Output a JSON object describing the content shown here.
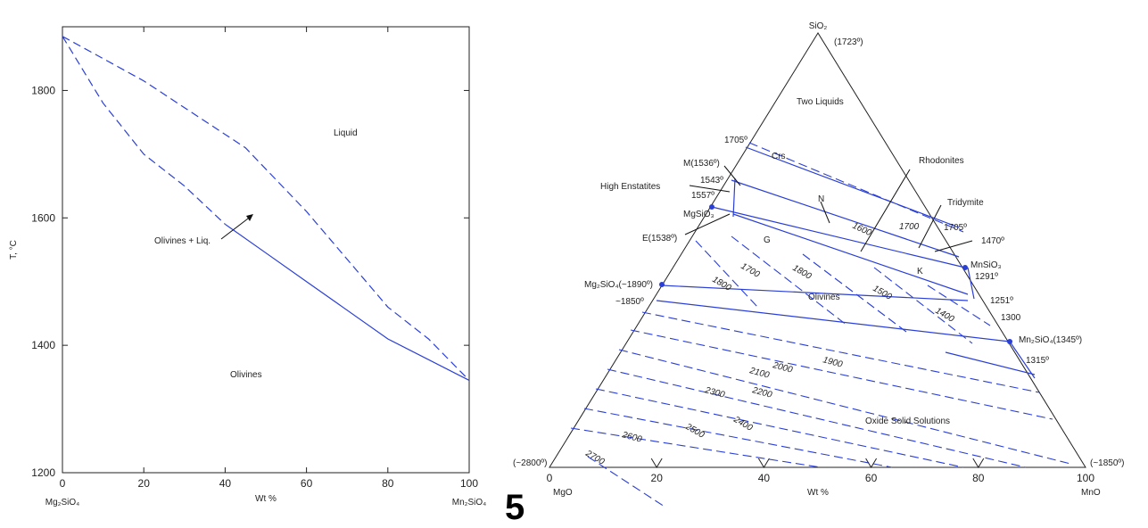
{
  "figure_number": "5",
  "chart_data": [
    {
      "type": "line",
      "xlabel": "Wt %",
      "ylabel": "T, °C",
      "xlim": [
        0,
        100
      ],
      "ylim": [
        1200,
        1900
      ],
      "x_ticks": [
        0,
        20,
        40,
        60,
        80,
        100
      ],
      "y_ticks": [
        1200,
        1400,
        1600,
        1800
      ],
      "x_end_labels": [
        "Mg₂SiO₄",
        "Mn₂SiO₄"
      ],
      "series": [
        {
          "style": "dashed",
          "x": [
            0,
            20,
            45,
            60,
            80,
            90,
            100
          ],
          "y": [
            1885,
            1815,
            1710,
            1610,
            1460,
            1410,
            1345
          ]
        },
        {
          "style": "dashed-then-solid",
          "x": [
            0,
            10,
            20,
            30,
            40,
            50,
            60,
            80,
            100
          ],
          "y": [
            1885,
            1780,
            1700,
            1650,
            1590,
            1545,
            1500,
            1410,
            1345
          ]
        }
      ],
      "annotations": [
        "Liquid",
        "Olivines + Liq.",
        "Olivines"
      ]
    },
    {
      "type": "ternary",
      "vertices": {
        "top": {
          "name": "SiO₂",
          "temp": "(1723º)"
        },
        "left": {
          "name": "MgO",
          "temp": "(~2800º)"
        },
        "right": {
          "name": "MnO",
          "temp": "(~1850º)"
        }
      },
      "xlabel": "Wt %",
      "base_ticks": [
        "0",
        "20",
        "40",
        "60",
        "80",
        "100"
      ],
      "labels": [
        "Two Liquids",
        "1705º",
        "M(1536º)",
        "1543º",
        "1557º",
        "High Enstatites",
        "Crs",
        "MgSiO₃",
        "E(1538º)",
        "G",
        "N",
        "Rhodonites",
        "Tridymite",
        "1705º",
        "1470º",
        "MnSiO₃",
        "1291º",
        "K",
        "Mg₂SiO₄(~1890º)",
        "~1850º",
        "Olivines",
        "1251º",
        "1300",
        "Mn₂SiO₄(1345º)",
        "1315º",
        "Oxide Solid Solutions"
      ],
      "isotherm_labels": [
        "1600",
        "1700",
        "1700",
        "1800",
        "1800",
        "1500",
        "1400",
        "2000",
        "1900",
        "2100",
        "2200",
        "2300",
        "2400",
        "2500",
        "2600",
        "2700"
      ]
    }
  ]
}
